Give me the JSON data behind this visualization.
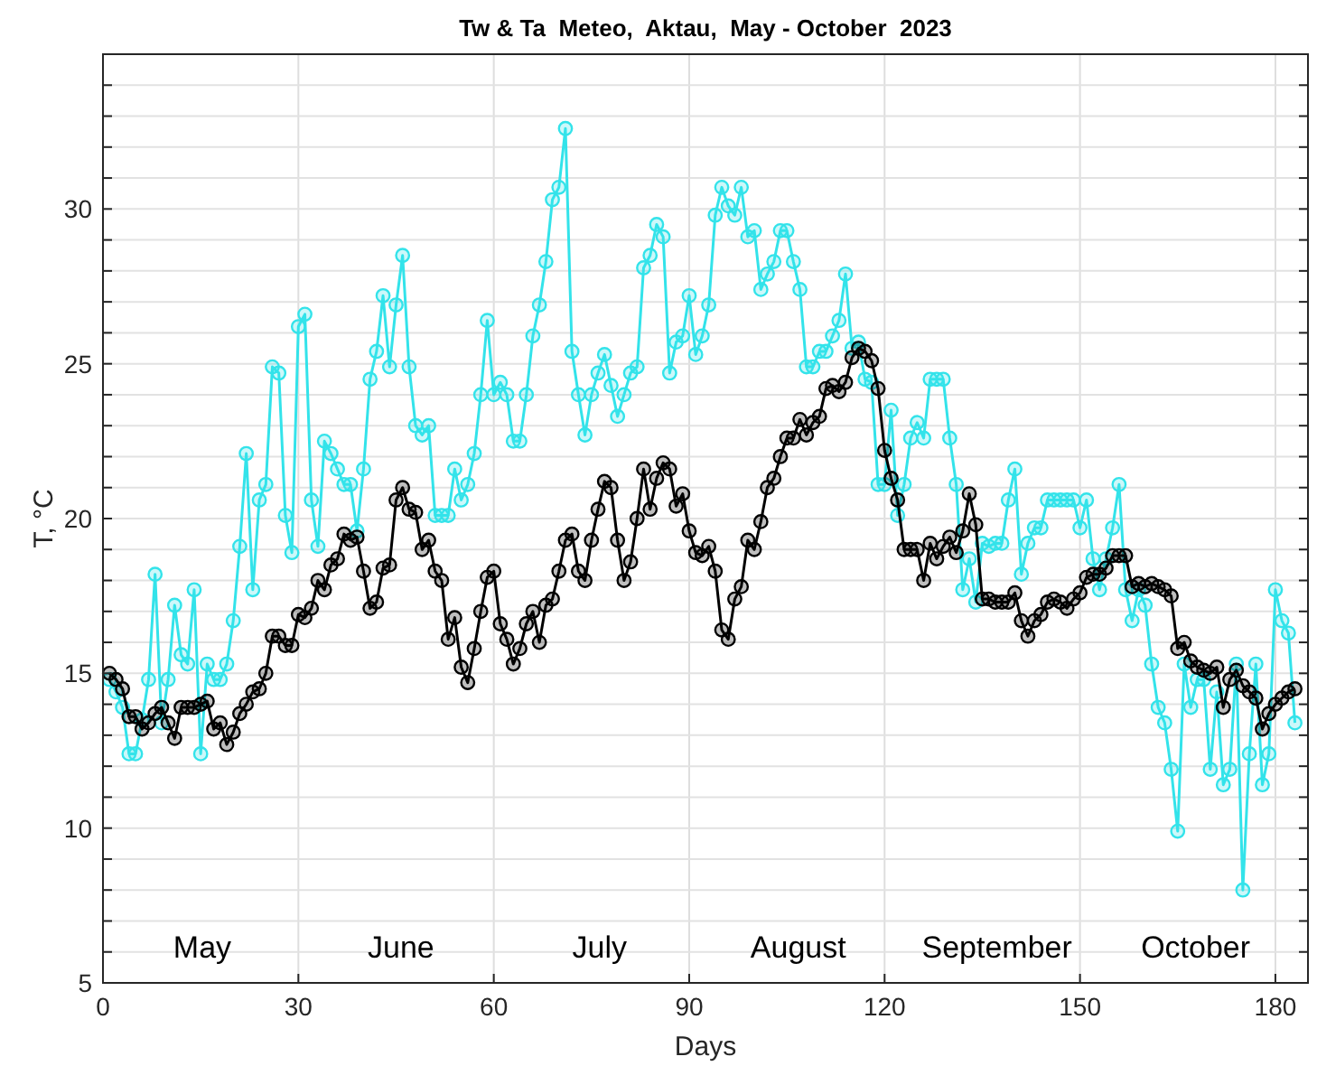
{
  "chart_data": {
    "type": "line",
    "title": "Tw & Ta  Meteo,  Aktau,  May - October  2023",
    "xlabel": "Days",
    "ylabel": "T, °C",
    "x": [
      1,
      2,
      3,
      4,
      5,
      6,
      7,
      8,
      9,
      10,
      11,
      12,
      13,
      14,
      15,
      16,
      17,
      18,
      19,
      20,
      21,
      22,
      23,
      24,
      25,
      26,
      27,
      28,
      29,
      30,
      31,
      32,
      33,
      34,
      35,
      36,
      37,
      38,
      39,
      40,
      41,
      42,
      43,
      44,
      45,
      46,
      47,
      48,
      49,
      50,
      51,
      52,
      53,
      54,
      55,
      56,
      57,
      58,
      59,
      60,
      61,
      62,
      63,
      64,
      65,
      66,
      67,
      68,
      69,
      70,
      71,
      72,
      73,
      74,
      75,
      76,
      77,
      78,
      79,
      80,
      81,
      82,
      83,
      84,
      85,
      86,
      87,
      88,
      89,
      90,
      91,
      92,
      93,
      94,
      95,
      96,
      97,
      98,
      99,
      100,
      101,
      102,
      103,
      104,
      105,
      106,
      107,
      108,
      109,
      110,
      111,
      112,
      113,
      114,
      115,
      116,
      117,
      118,
      119,
      120,
      121,
      122,
      123,
      124,
      125,
      126,
      127,
      128,
      129,
      130,
      131,
      132,
      133,
      134,
      135,
      136,
      137,
      138,
      139,
      140,
      141,
      142,
      143,
      144,
      145,
      146,
      147,
      148,
      149,
      150,
      151,
      152,
      153,
      154,
      155,
      156,
      157,
      158,
      159,
      160,
      161,
      162,
      163,
      164,
      165,
      166,
      167,
      168,
      169,
      170,
      171,
      172,
      173,
      174,
      175,
      176,
      177,
      178,
      179,
      180,
      181,
      182,
      183
    ],
    "series": [
      {
        "color": "#33e3ea",
        "values": [
          14.8,
          14.4,
          13.9,
          12.4,
          12.4,
          13.5,
          14.8,
          18.2,
          13.4,
          14.8,
          17.2,
          15.6,
          15.3,
          17.7,
          12.4,
          15.3,
          14.8,
          14.8,
          15.3,
          16.7,
          19.1,
          22.1,
          17.7,
          20.6,
          21.1,
          24.9,
          24.7,
          20.1,
          18.9,
          26.2,
          26.6,
          20.6,
          19.1,
          22.5,
          22.1,
          21.6,
          21.1,
          21.1,
          19.6,
          21.6,
          24.5,
          25.4,
          27.2,
          24.9,
          26.9,
          28.5,
          24.9,
          23.0,
          22.7,
          23.0,
          20.1,
          20.1,
          20.1,
          21.6,
          20.6,
          21.1,
          22.1,
          24.0,
          26.4,
          24.0,
          24.4,
          24.0,
          22.5,
          22.5,
          24.0,
          25.9,
          26.9,
          28.3,
          30.3,
          30.7,
          32.6,
          25.4,
          24.0,
          22.7,
          24.0,
          24.7,
          25.3,
          24.3,
          23.3,
          24.0,
          24.7,
          24.9,
          28.1,
          28.5,
          29.5,
          29.1,
          24.7,
          25.7,
          25.9,
          27.2,
          25.3,
          25.9,
          26.9,
          29.8,
          30.7,
          30.1,
          29.8,
          30.7,
          29.1,
          29.3,
          27.4,
          27.9,
          28.3,
          29.3,
          29.3,
          28.3,
          27.4,
          24.9,
          24.9,
          25.4,
          25.4,
          25.9,
          26.4,
          27.9,
          25.5,
          25.7,
          24.5,
          24.4,
          21.1,
          21.1,
          23.5,
          20.1,
          21.1,
          22.6,
          23.1,
          22.6,
          24.5,
          24.5,
          24.5,
          22.6,
          21.1,
          17.7,
          18.7,
          17.3,
          19.2,
          19.1,
          19.2,
          19.2,
          20.6,
          21.6,
          18.2,
          19.2,
          19.7,
          19.7,
          20.6,
          20.6,
          20.6,
          20.6,
          20.6,
          19.7,
          20.6,
          18.7,
          17.7,
          18.7,
          19.7,
          21.1,
          17.7,
          16.7,
          17.7,
          17.2,
          15.3,
          13.9,
          13.4,
          11.9,
          9.9,
          15.3,
          13.9,
          14.8,
          14.8,
          11.9,
          14.4,
          11.4,
          11.9,
          15.3,
          8.0,
          12.4,
          15.3,
          11.4,
          12.4,
          17.7,
          16.7,
          16.3,
          13.4
        ]
      },
      {
        "color": "#000000",
        "values": [
          15.0,
          14.8,
          14.5,
          13.6,
          13.6,
          13.2,
          13.4,
          13.7,
          13.9,
          13.4,
          12.9,
          13.9,
          13.9,
          13.9,
          14.0,
          14.1,
          13.2,
          13.4,
          12.7,
          13.1,
          13.7,
          14.0,
          14.4,
          14.5,
          15.0,
          16.2,
          16.2,
          15.9,
          15.9,
          16.9,
          16.8,
          17.1,
          18.0,
          17.7,
          18.5,
          18.7,
          19.5,
          19.3,
          19.4,
          18.3,
          17.1,
          17.3,
          18.4,
          18.5,
          20.6,
          21.0,
          20.3,
          20.2,
          19.0,
          19.3,
          18.3,
          18.0,
          16.1,
          16.8,
          15.2,
          14.7,
          15.8,
          17.0,
          18.1,
          18.3,
          16.6,
          16.1,
          15.3,
          15.8,
          16.6,
          17.0,
          16.0,
          17.2,
          17.4,
          18.3,
          19.3,
          19.5,
          18.3,
          18.0,
          19.3,
          20.3,
          21.2,
          21.0,
          19.3,
          18.0,
          18.6,
          20.0,
          21.6,
          20.3,
          21.3,
          21.8,
          21.6,
          20.4,
          20.8,
          19.6,
          18.9,
          18.8,
          19.1,
          18.3,
          16.4,
          16.1,
          17.4,
          17.8,
          19.3,
          19.0,
          19.9,
          21.0,
          21.3,
          22.0,
          22.6,
          22.6,
          23.2,
          22.7,
          23.1,
          23.3,
          24.2,
          24.3,
          24.1,
          24.4,
          25.2,
          25.5,
          25.4,
          25.1,
          24.2,
          22.2,
          21.3,
          20.6,
          19.0,
          19.0,
          19.0,
          18.0,
          19.2,
          18.7,
          19.1,
          19.4,
          18.9,
          19.6,
          20.8,
          19.8,
          17.4,
          17.4,
          17.3,
          17.3,
          17.3,
          17.6,
          16.7,
          16.2,
          16.7,
          16.9,
          17.3,
          17.4,
          17.3,
          17.1,
          17.4,
          17.6,
          18.1,
          18.2,
          18.2,
          18.4,
          18.8,
          18.8,
          18.8,
          17.8,
          17.9,
          17.8,
          17.9,
          17.8,
          17.7,
          17.5,
          15.8,
          16.0,
          15.4,
          15.2,
          15.1,
          15.0,
          15.2,
          13.9,
          14.8,
          15.1,
          14.6,
          14.4,
          14.2,
          13.2,
          13.7,
          14.0,
          14.2,
          14.4,
          14.5
        ]
      }
    ],
    "xlim": [
      0,
      185
    ],
    "xticks": [
      0,
      30,
      60,
      90,
      120,
      150,
      180
    ],
    "ylim": [
      5,
      35
    ],
    "yticks": [
      5,
      {
        "value": 6,
        "label": null
      },
      {
        "value": 7,
        "label": null
      },
      {
        "value": 8,
        "label": null
      },
      {
        "value": 9,
        "label": null
      },
      10,
      {
        "value": 11,
        "label": null
      },
      {
        "value": 12,
        "label": null
      },
      {
        "value": 13,
        "label": null
      },
      {
        "value": 14,
        "label": null
      },
      15,
      {
        "value": 16,
        "label": null
      },
      {
        "value": 17,
        "label": null
      },
      {
        "value": 18,
        "label": null
      },
      {
        "value": 19,
        "label": null
      },
      20,
      {
        "value": 21,
        "label": null
      },
      {
        "value": 22,
        "label": null
      },
      {
        "value": 23,
        "label": null
      },
      {
        "value": 24,
        "label": null
      },
      25,
      {
        "value": 26,
        "label": null
      },
      {
        "value": 27,
        "label": null
      },
      {
        "value": 28,
        "label": null
      },
      {
        "value": 29,
        "label": null
      },
      30,
      {
        "value": 31,
        "label": null
      },
      {
        "value": 32,
        "label": null
      },
      {
        "value": 33,
        "label": null
      },
      {
        "value": 34,
        "label": null
      },
      {
        "value": 35,
        "label": null
      }
    ],
    "grid": true,
    "marker": "circle",
    "line_style": "solid",
    "annotations": [
      "May",
      "June",
      "July",
      "August",
      "September",
      "October"
    ]
  }
}
